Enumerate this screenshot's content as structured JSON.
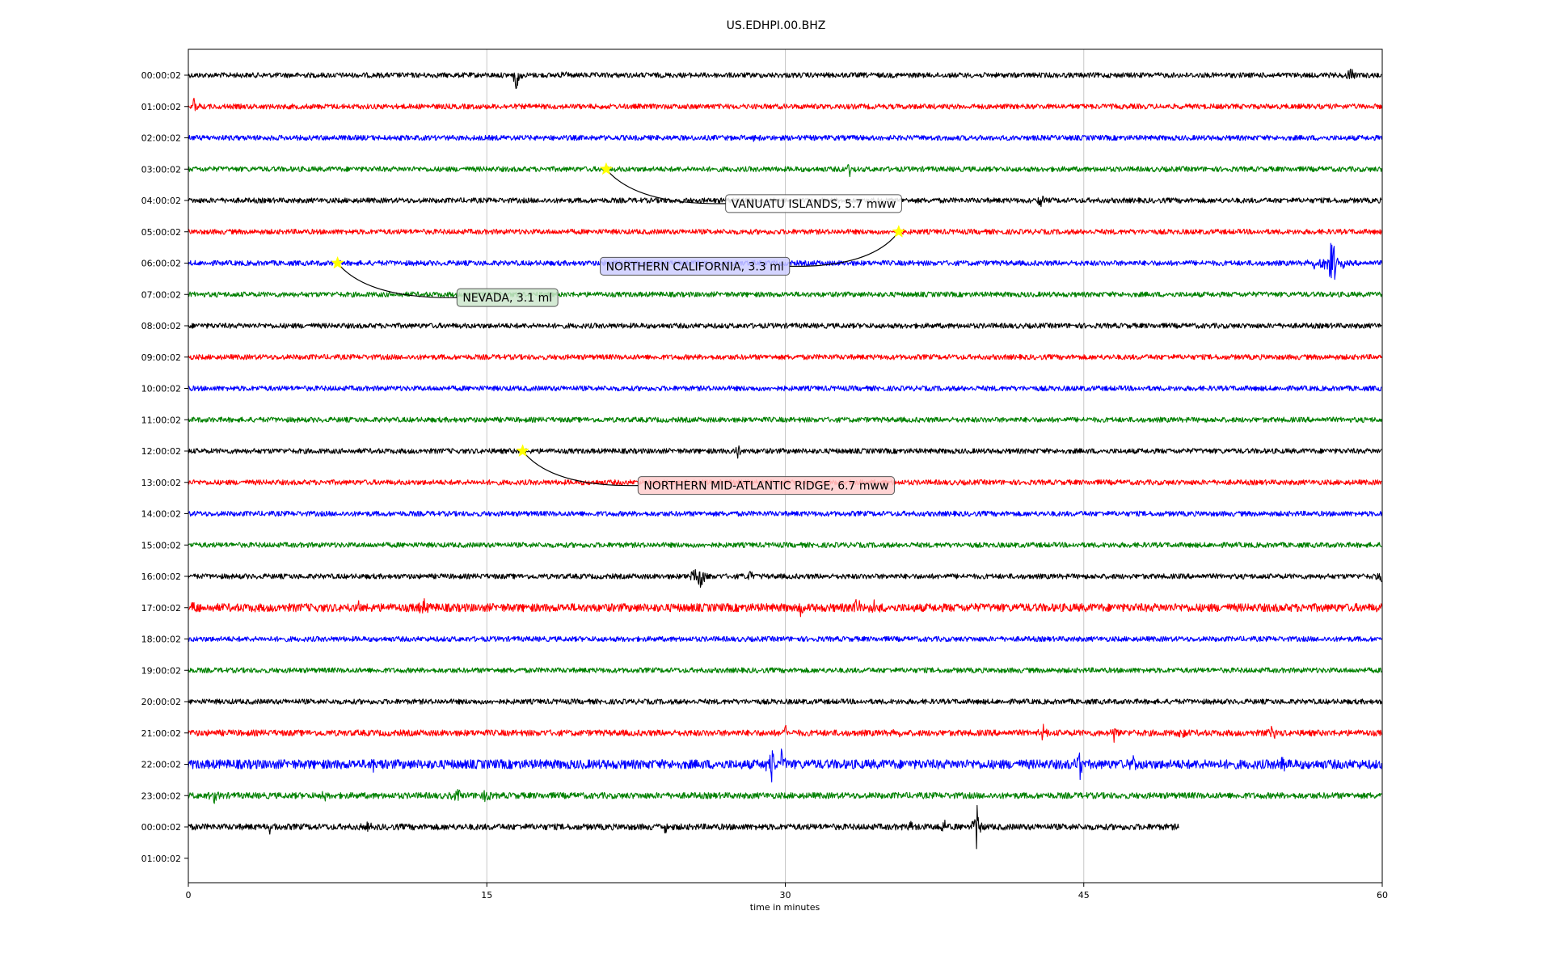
{
  "chart_data": {
    "type": "line",
    "title": "US.EDHPI.00.BHZ",
    "xlabel": "time in minutes",
    "ylabel": "",
    "xlim": [
      0,
      60
    ],
    "x_ticks": [
      0,
      15,
      30,
      45,
      60
    ],
    "x_tick_labels": [
      "0",
      "15",
      "30",
      "45",
      "60"
    ],
    "vertical_grid": true,
    "row_labels": [
      "00:00:02",
      "01:00:02",
      "02:00:02",
      "03:00:02",
      "04:00:02",
      "05:00:02",
      "06:00:02",
      "07:00:02",
      "08:00:02",
      "09:00:02",
      "10:00:02",
      "11:00:02",
      "12:00:02",
      "13:00:02",
      "14:00:02",
      "15:00:02",
      "16:00:02",
      "17:00:02",
      "18:00:02",
      "19:00:02",
      "20:00:02",
      "21:00:02",
      "22:00:02",
      "23:00:02",
      "00:00:02",
      "01:00:02"
    ],
    "trace_colors": [
      "#000000",
      "#ff0000",
      "#0000ff",
      "#008000"
    ],
    "trace_rows": [
      {
        "row": 0,
        "start_min": 0,
        "end_min": 60,
        "noise": 1.0,
        "spikes": [
          {
            "t": 16.5,
            "amp": 22
          },
          {
            "t": 19,
            "amp": 6
          },
          {
            "t": 58.4,
            "amp": 11
          },
          {
            "t": 60,
            "amp": 9
          }
        ]
      },
      {
        "row": 1,
        "start_min": 0,
        "end_min": 60,
        "noise": 1.0,
        "spikes": [
          {
            "t": 0.3,
            "amp": 12
          }
        ]
      },
      {
        "row": 2,
        "start_min": 0,
        "end_min": 60,
        "noise": 1.0,
        "spikes": [
          {
            "t": 28.4,
            "amp": 9
          }
        ]
      },
      {
        "row": 3,
        "start_min": 0,
        "end_min": 60,
        "noise": 1.0,
        "spikes": [
          {
            "t": 33.2,
            "amp": 12
          }
        ]
      },
      {
        "row": 4,
        "start_min": 0,
        "end_min": 60,
        "noise": 1.0,
        "spikes": [
          {
            "t": 42.8,
            "amp": 14
          }
        ]
      },
      {
        "row": 5,
        "start_min": 0,
        "end_min": 60,
        "noise": 1.0,
        "spikes": []
      },
      {
        "row": 6,
        "start_min": 0,
        "end_min": 60,
        "noise": 1.0,
        "spikes": [
          {
            "t": 57.5,
            "amp": 62
          },
          {
            "t": 56.5,
            "amp": 12
          },
          {
            "t": 57.0,
            "amp": 14
          },
          {
            "t": 58.0,
            "amp": 10
          }
        ]
      },
      {
        "row": 7,
        "start_min": 0,
        "end_min": 60,
        "noise": 1.0,
        "spikes": []
      },
      {
        "row": 8,
        "start_min": 0,
        "end_min": 60,
        "noise": 1.0,
        "spikes": []
      },
      {
        "row": 9,
        "start_min": 0,
        "end_min": 60,
        "noise": 1.0,
        "spikes": []
      },
      {
        "row": 10,
        "start_min": 0,
        "end_min": 60,
        "noise": 1.0,
        "spikes": []
      },
      {
        "row": 11,
        "start_min": 0,
        "end_min": 60,
        "noise": 1.0,
        "spikes": []
      },
      {
        "row": 12,
        "start_min": 0,
        "end_min": 60,
        "noise": 1.0,
        "spikes": [
          {
            "t": 27.6,
            "amp": 14
          }
        ]
      },
      {
        "row": 13,
        "start_min": 0,
        "end_min": 60,
        "noise": 1.0,
        "spikes": []
      },
      {
        "row": 14,
        "start_min": 0,
        "end_min": 60,
        "noise": 1.0,
        "spikes": []
      },
      {
        "row": 15,
        "start_min": 0,
        "end_min": 60,
        "noise": 1.0,
        "spikes": []
      },
      {
        "row": 16,
        "start_min": 0,
        "end_min": 60,
        "noise": 1.0,
        "spikes": [
          {
            "t": 25.8,
            "amp": 34
          },
          {
            "t": 25.4,
            "amp": 12
          },
          {
            "t": 28.2,
            "amp": 9
          },
          {
            "t": 60,
            "amp": 12
          }
        ]
      },
      {
        "row": 17,
        "start_min": 0,
        "end_min": 60,
        "noise": 1.6,
        "spikes": [
          {
            "t": 0.2,
            "amp": 9
          },
          {
            "t": 11.8,
            "amp": 16
          },
          {
            "t": 8.5,
            "amp": 8
          },
          {
            "t": 30.8,
            "amp": 10
          },
          {
            "t": 33.6,
            "amp": 12
          },
          {
            "t": 34.5,
            "amp": 10
          }
        ]
      },
      {
        "row": 18,
        "start_min": 0,
        "end_min": 60,
        "noise": 1.0,
        "spikes": []
      },
      {
        "row": 19,
        "start_min": 0,
        "end_min": 60,
        "noise": 1.0,
        "spikes": []
      },
      {
        "row": 20,
        "start_min": 0,
        "end_min": 60,
        "noise": 1.0,
        "spikes": []
      },
      {
        "row": 21,
        "start_min": 0,
        "end_min": 60,
        "noise": 1.2,
        "spikes": [
          {
            "t": 30.0,
            "amp": 10
          },
          {
            "t": 35.7,
            "amp": 10
          },
          {
            "t": 43.0,
            "amp": 12
          },
          {
            "t": 46.5,
            "amp": 14
          },
          {
            "t": 50.0,
            "amp": 12
          },
          {
            "t": 54.5,
            "amp": 12
          }
        ]
      },
      {
        "row": 22,
        "start_min": 0,
        "end_min": 60,
        "noise": 1.8,
        "spikes": [
          {
            "t": 29.3,
            "amp": 30
          },
          {
            "t": 29.8,
            "amp": 16
          },
          {
            "t": 44.8,
            "amp": 18
          },
          {
            "t": 47.5,
            "amp": 14
          },
          {
            "t": 9.3,
            "amp": 9
          },
          {
            "t": 55.0,
            "amp": 12
          }
        ]
      },
      {
        "row": 23,
        "start_min": 0,
        "end_min": 60,
        "noise": 1.2,
        "spikes": [
          {
            "t": 1.3,
            "amp": 10
          },
          {
            "t": 13.5,
            "amp": 12
          },
          {
            "t": 15.0,
            "amp": 12
          },
          {
            "t": 6.8,
            "amp": 8
          }
        ]
      },
      {
        "row": 24,
        "start_min": 0,
        "end_min": 49.8,
        "noise": 1.2,
        "spikes": [
          {
            "t": 4.1,
            "amp": 8
          },
          {
            "t": 9.0,
            "amp": 9
          },
          {
            "t": 24.0,
            "amp": 9
          },
          {
            "t": 38.0,
            "amp": 14
          },
          {
            "t": 39.6,
            "amp": 34
          },
          {
            "t": 36.3,
            "amp": 8
          }
        ]
      }
    ],
    "events": [
      {
        "label": "VANUATU ISLANDS, 5.7 mww",
        "row": 3,
        "minute": 21.0,
        "label_row": 4.1,
        "label_minute": 27.0,
        "box_color": "#ffffff"
      },
      {
        "label": "NORTHERN CALIFORNIA, 3.3 ml",
        "row": 5,
        "minute": 35.7,
        "label_row": 6.1,
        "label_minute": 20.7,
        "box_color": "#ccccff"
      },
      {
        "label": "NEVADA, 3.1 ml",
        "row": 6,
        "minute": 7.5,
        "label_row": 7.1,
        "label_minute": 13.5,
        "box_color": "#cce6cc"
      },
      {
        "label": "NORTHERN MID-ATLANTIC RIDGE, 6.7 mww",
        "row": 12,
        "minute": 16.8,
        "label_row": 13.1,
        "label_minute": 22.6,
        "box_color": "#ffcccc"
      }
    ],
    "marker": {
      "shape": "star",
      "color": "#ffff00"
    }
  }
}
